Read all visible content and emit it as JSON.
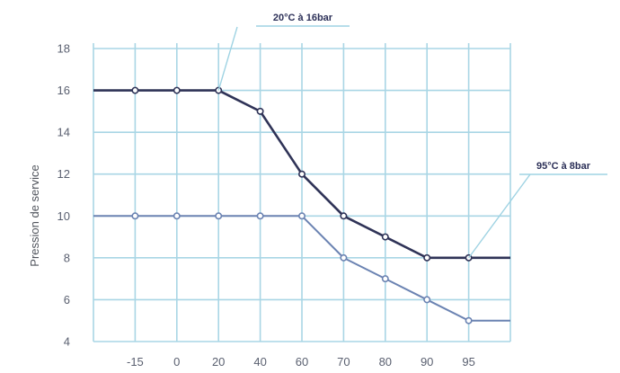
{
  "chart_data": {
    "type": "line",
    "ylabel": "Pression de service",
    "xlabel": "",
    "categories": [
      "",
      "-15",
      "0",
      "20",
      "40",
      "60",
      "70",
      "80",
      "90",
      "95",
      ""
    ],
    "ylim": [
      4,
      18
    ],
    "yticks": [
      4,
      6,
      8,
      10,
      12,
      14,
      16,
      18
    ],
    "grid": true,
    "series": [
      {
        "values": [
          16,
          16,
          16,
          16,
          15,
          12,
          10,
          9,
          8,
          8,
          8
        ]
      },
      {
        "values": [
          10,
          10,
          10,
          10,
          10,
          10,
          8,
          7,
          6,
          5,
          5
        ]
      }
    ],
    "annotations": [
      {
        "text": "20°C à 16bar",
        "category": "20",
        "value": 16
      },
      {
        "text": "95°C à 8bar",
        "category": "95",
        "value": 8
      }
    ]
  },
  "colors": {
    "grid": "#a9d6e5",
    "series_dark": "#2f3357",
    "series_light": "#6b83b2",
    "callout": "#9fd3e3"
  }
}
